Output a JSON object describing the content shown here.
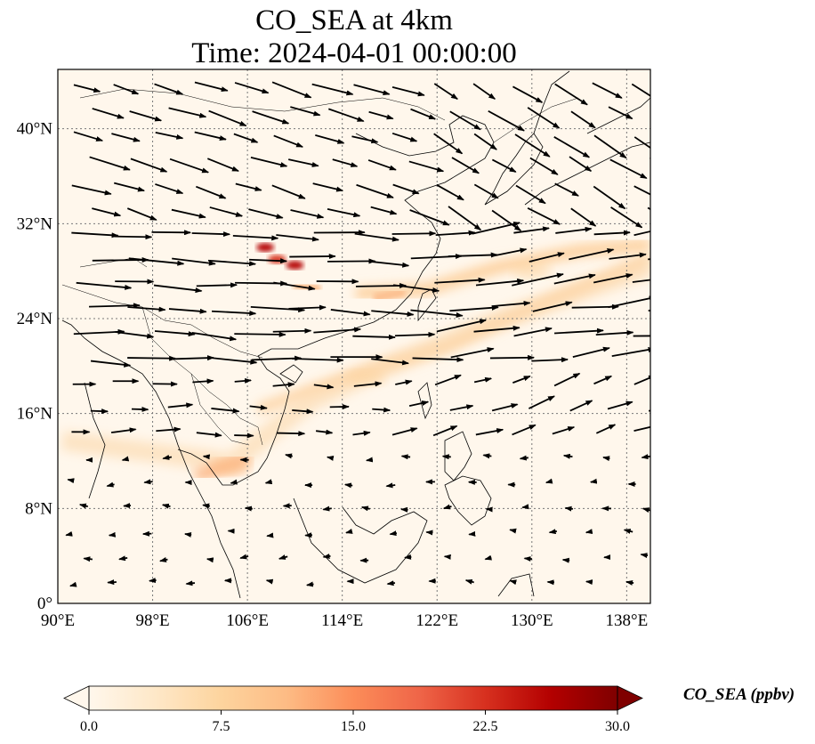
{
  "title": {
    "line1": "CO_SEA at 4km",
    "line2": "Time: 2024-04-01 00:00:00"
  },
  "map": {
    "lon_range": [
      90,
      140
    ],
    "lat_range": [
      0,
      45
    ],
    "lon_ticks": [
      "90°E",
      "98°E",
      "106°E",
      "114°E",
      "122°E",
      "130°E",
      "138°E"
    ],
    "lon_tick_values": [
      90,
      98,
      106,
      114,
      122,
      130,
      138
    ],
    "lat_ticks": [
      "0°",
      "8°N",
      "16°N",
      "24°N",
      "32°N",
      "40°N"
    ],
    "lat_tick_values": [
      0,
      8,
      16,
      24,
      32,
      40
    ],
    "gridlines": true,
    "field": "CO_SEA",
    "wind_vectors": true
  },
  "colorbar": {
    "label": "CO_SEA (ppbv)",
    "ticks": [
      "0.0",
      "7.5",
      "15.0",
      "22.5",
      "30.0"
    ],
    "tick_values": [
      0,
      7.5,
      15,
      22.5,
      30
    ],
    "range": [
      0,
      30
    ],
    "colormap": [
      "#fff7ec",
      "#fee8c8",
      "#fdd49e",
      "#fdbb84",
      "#fc8d59",
      "#ef6548",
      "#d7301f",
      "#b30000",
      "#7f0000"
    ],
    "extend": "both"
  },
  "chart_data": {
    "type": "heatmap",
    "title": "CO_SEA at 4km\nTime: 2024-04-01 00:00:00",
    "x_ticks": [
      "90°E",
      "98°E",
      "106°E",
      "114°E",
      "122°E",
      "130°E",
      "138°E"
    ],
    "y_ticks": [
      "0°",
      "8°N",
      "16°N",
      "24°N",
      "32°N",
      "40°N"
    ],
    "xlim": [
      90,
      140
    ],
    "ylim": [
      0,
      45
    ],
    "grid": true,
    "plumes": [
      {
        "lon": 107.5,
        "lat": 30,
        "value": 28
      },
      {
        "lon": 110,
        "lat": 28.5,
        "value": 26
      },
      {
        "lon": 108.5,
        "lat": 29,
        "value": 22
      },
      {
        "lon": 104.5,
        "lat": 11.5,
        "value": 11
      },
      {
        "lon": 116,
        "lat": 19,
        "value": 7
      },
      {
        "lon": 130,
        "lat": 28,
        "value": 8
      }
    ]
  }
}
